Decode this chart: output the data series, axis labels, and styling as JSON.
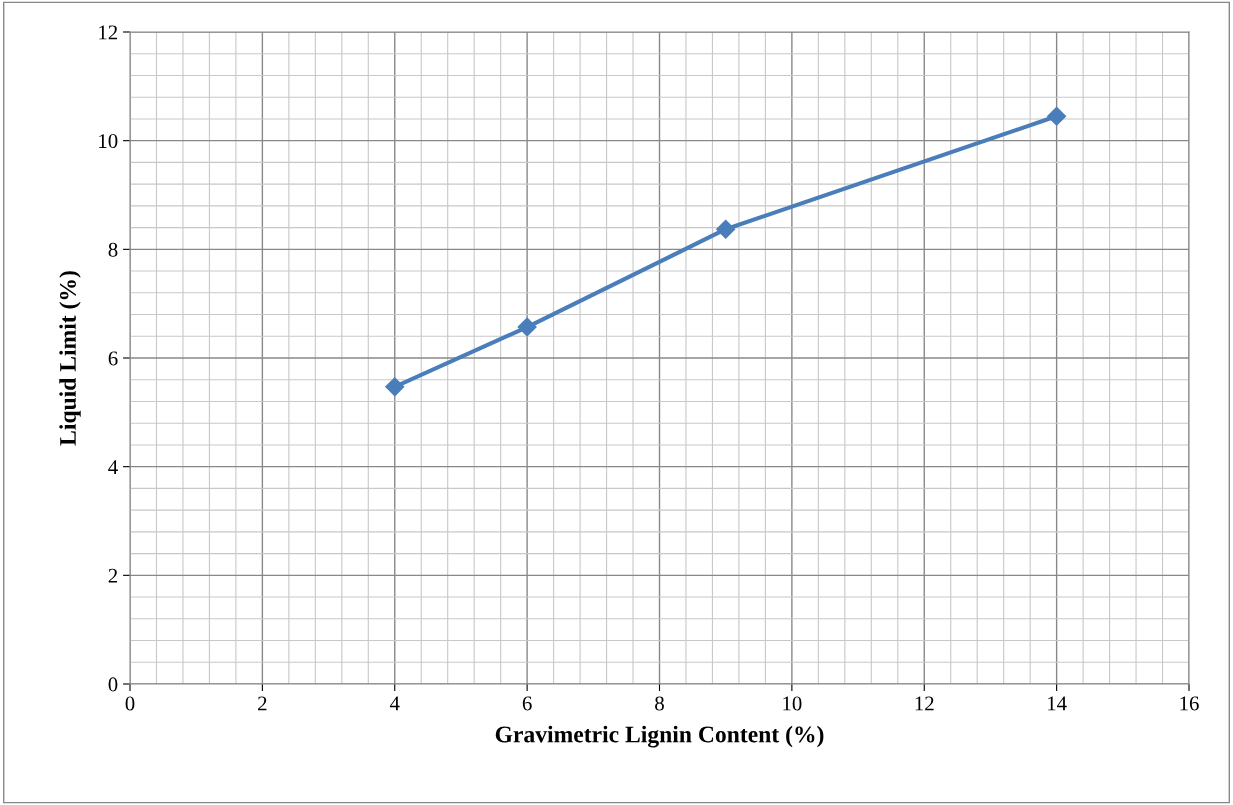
{
  "chart_data": {
    "type": "line",
    "xlabel": "Gravimetric Lignin Content (%)",
    "ylabel": "Liquid Limit (%)",
    "x": [
      4,
      6,
      9,
      14
    ],
    "series": [
      {
        "color": "#4a7ebb",
        "values": [
          5.47,
          6.57,
          8.37,
          10.45
        ]
      }
    ],
    "xlim": [
      0,
      16
    ],
    "xticks": [
      0,
      2,
      4,
      6,
      8,
      10,
      12,
      14,
      16
    ],
    "ylim": [
      0,
      12
    ],
    "yticks": [
      0,
      2,
      4,
      6,
      8,
      10,
      12
    ],
    "grid": true,
    "marker": "diamond",
    "line_style": "solid"
  }
}
